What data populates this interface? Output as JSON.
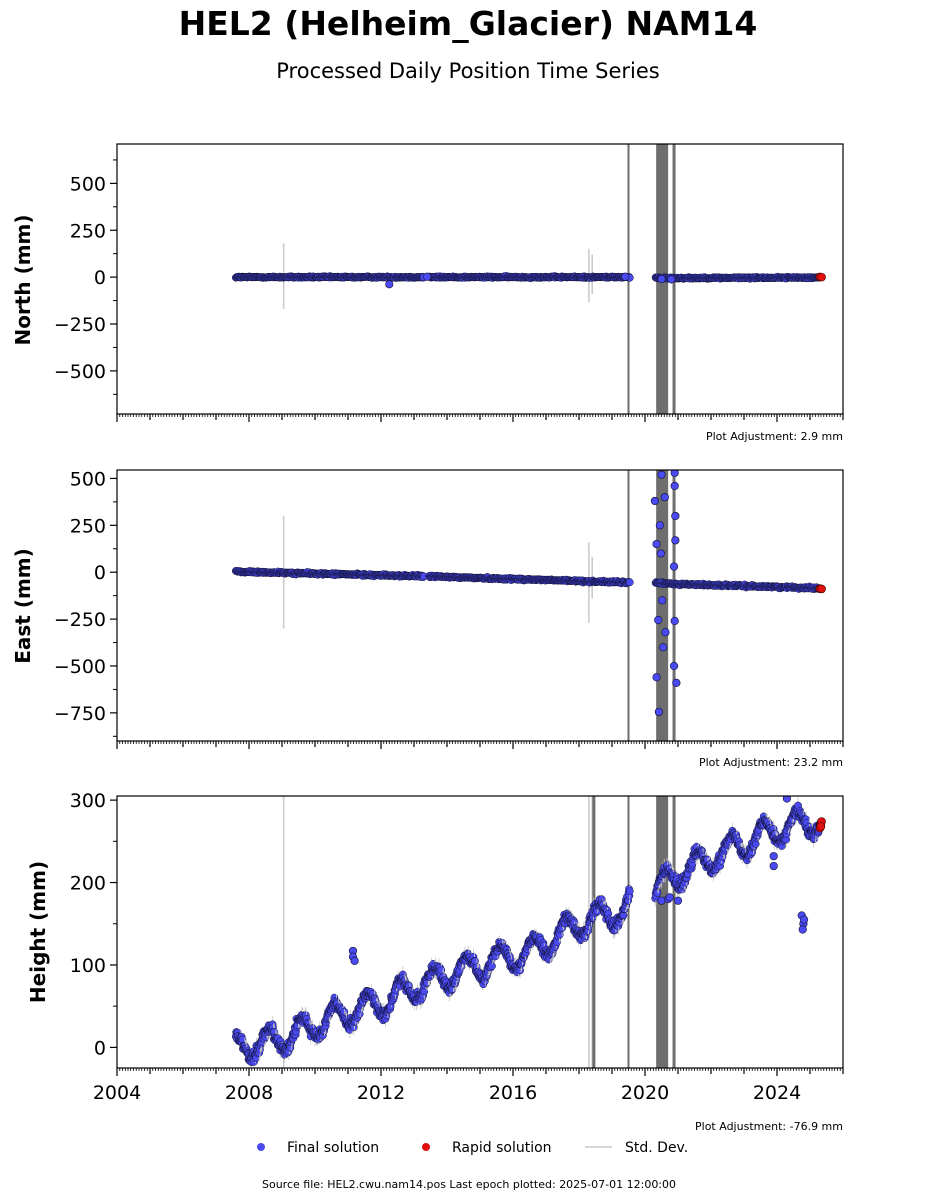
{
  "figure": {
    "title": "HEL2 (Helheim_Glacier) NAM14",
    "subtitle": "Processed Daily Position Time Series",
    "source": "Source file: HEL2.cwu.nam14.pos  Last epoch plotted: 2025-07-01 12:00:00"
  },
  "legend": {
    "final": "Final solution",
    "rapid": "Rapid solution",
    "std": "Std. Dev."
  },
  "colors": {
    "final": "#4a4af0",
    "final_edge": "#111133",
    "rapid": "#e01010",
    "std": "#c8c8c8",
    "event_line": "#6e6e6e"
  },
  "chart_data": [
    {
      "type": "scatter",
      "panel": "north",
      "ylabel": "North (mm)",
      "adjustment": "Plot Adjustment: 2.9 mm",
      "xlim": [
        2004.0,
        2026.0
      ],
      "ylim": [
        -730,
        710
      ],
      "yticks": [
        -500,
        -250,
        0,
        250,
        500
      ],
      "ytick_labels": [
        "−500",
        "−250",
        "0",
        "250",
        "500"
      ],
      "trend": [
        [
          2007.6,
          0
        ],
        [
          2019.5,
          0
        ],
        [
          2020.5,
          -5
        ],
        [
          2025.3,
          -2
        ]
      ],
      "scatter_sd": 3,
      "outliers": [
        [
          2012.25,
          -38
        ],
        [
          2013.4,
          2
        ],
        [
          2019.4,
          2
        ],
        [
          2020.5,
          -10
        ],
        [
          2020.8,
          -12
        ]
      ],
      "std_bars": [
        [
          2009.05,
          -170,
          180
        ],
        [
          2018.3,
          -135,
          150
        ],
        [
          2018.4,
          -90,
          120
        ]
      ],
      "rapid": [
        [
          2025.3,
          1
        ],
        [
          2025.35,
          0
        ]
      ]
    },
    {
      "type": "scatter",
      "panel": "east",
      "ylabel": "East (mm)",
      "adjustment": "Plot Adjustment: 23.2 mm",
      "xlim": [
        2004.0,
        2026.0
      ],
      "ylim": [
        -900,
        545
      ],
      "yticks": [
        -750,
        -500,
        -250,
        0,
        250,
        500
      ],
      "ytick_labels": [
        "−750",
        "−500",
        "−250",
        "0",
        "250",
        "500"
      ],
      "trend": [
        [
          2007.6,
          3
        ],
        [
          2013.4,
          -22
        ],
        [
          2019.5,
          -55
        ],
        [
          2020.3,
          -55
        ],
        [
          2020.8,
          -62
        ],
        [
          2025.3,
          -85
        ]
      ],
      "scatter_sd": 4,
      "outliers": [
        [
          2020.3,
          380
        ],
        [
          2020.35,
          150
        ],
        [
          2020.4,
          -255
        ],
        [
          2020.45,
          250
        ],
        [
          2020.5,
          520
        ],
        [
          2020.55,
          -400
        ],
        [
          2020.35,
          -560
        ],
        [
          2020.42,
          -745
        ],
        [
          2020.48,
          100
        ],
        [
          2020.52,
          -150
        ],
        [
          2020.6,
          400
        ],
        [
          2020.62,
          -320
        ],
        [
          2020.9,
          530
        ],
        [
          2020.9,
          460
        ],
        [
          2020.92,
          300
        ],
        [
          2020.95,
          -590
        ],
        [
          2020.88,
          -500
        ],
        [
          2020.9,
          -260
        ],
        [
          2020.92,
          170
        ],
        [
          2020.88,
          30
        ]
      ],
      "std_bars": [
        [
          2009.05,
          -300,
          300
        ],
        [
          2018.3,
          -270,
          160
        ],
        [
          2018.4,
          -140,
          80
        ]
      ],
      "rapid": [
        [
          2025.3,
          -88
        ],
        [
          2025.35,
          -89
        ]
      ]
    },
    {
      "type": "scatter",
      "panel": "height",
      "ylabel": "Height (mm)",
      "adjustment": "Plot Adjustment: -76.9 mm",
      "xlim": [
        2004.0,
        2026.0
      ],
      "ylim": [
        -25,
        305
      ],
      "yticks": [
        0,
        100,
        200,
        300
      ],
      "ytick_labels": [
        "0",
        "100",
        "200",
        "300"
      ],
      "xticks": [
        2004,
        2008,
        2012,
        2016,
        2020,
        2024
      ],
      "trend": [
        [
          2007.6,
          0
        ],
        [
          2009.0,
          10
        ],
        [
          2010.5,
          35
        ],
        [
          2012.0,
          55
        ],
        [
          2013.5,
          80
        ],
        [
          2015.0,
          100
        ],
        [
          2016.5,
          115
        ],
        [
          2018.0,
          150
        ],
        [
          2019.5,
          170
        ],
        [
          2020.5,
          195
        ],
        [
          2021.0,
          210
        ],
        [
          2022.5,
          240
        ],
        [
          2024.0,
          265
        ],
        [
          2025.3,
          275
        ]
      ],
      "seasonal_amp": 16,
      "scatter_sd": 5,
      "outliers": [
        [
          2011.15,
          117
        ],
        [
          2011.15,
          110
        ],
        [
          2011.2,
          105
        ],
        [
          2024.75,
          160
        ],
        [
          2024.8,
          150
        ],
        [
          2024.78,
          143
        ],
        [
          2024.82,
          155
        ],
        [
          2020.5,
          178
        ],
        [
          2020.7,
          180
        ],
        [
          2020.75,
          182
        ],
        [
          2021.0,
          178
        ],
        [
          2023.9,
          220
        ],
        [
          2023.9,
          232
        ],
        [
          2024.3,
          302
        ]
      ],
      "std_bars": [
        [
          2009.05,
          -25,
          305
        ],
        [
          2018.3,
          -25,
          305
        ],
        [
          2018.4,
          -25,
          305
        ]
      ],
      "rapid": [
        [
          2025.3,
          266
        ],
        [
          2025.32,
          270
        ],
        [
          2025.35,
          274
        ],
        [
          2025.33,
          268
        ]
      ]
    }
  ],
  "events": [
    {
      "x": 2018.45,
      "panels": [
        "height"
      ],
      "width": 3
    },
    {
      "x": 2019.5,
      "panels": [
        "north",
        "east",
        "height"
      ],
      "width": 2
    },
    {
      "x": 2020.52,
      "panels": [
        "north",
        "east",
        "height"
      ],
      "width": 12
    },
    {
      "x": 2020.88,
      "panels": [
        "north",
        "east",
        "height"
      ],
      "width": 3
    }
  ]
}
